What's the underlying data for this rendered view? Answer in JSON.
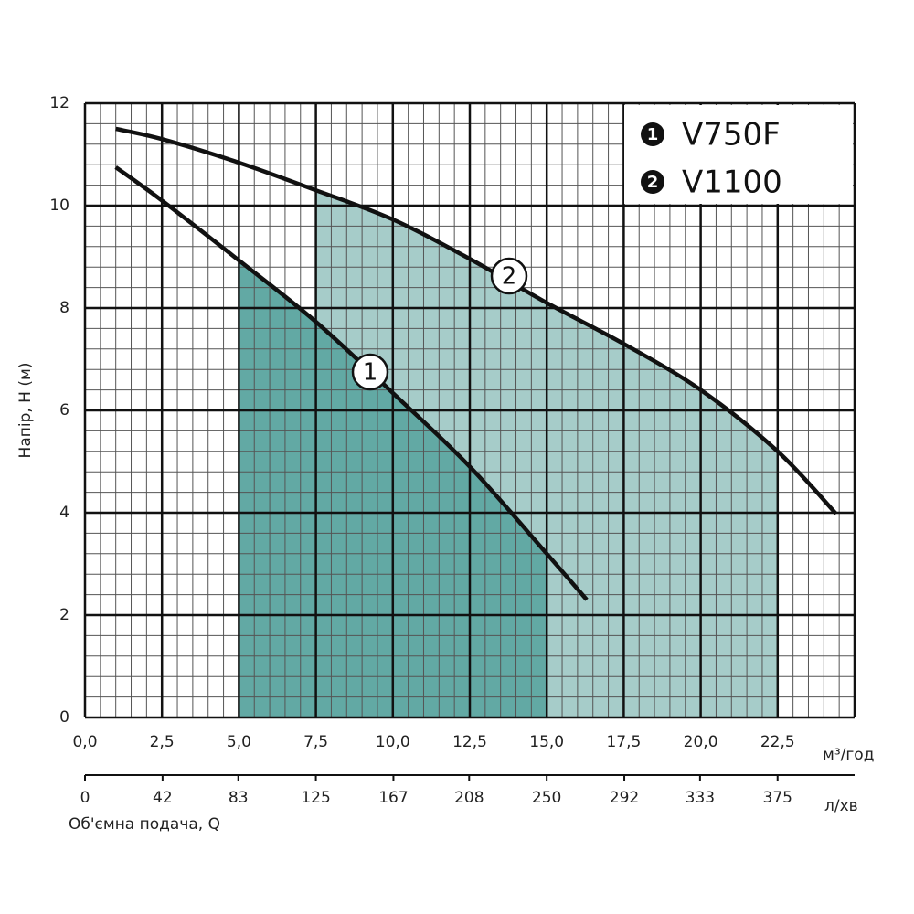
{
  "chart_data": {
    "type": "line",
    "ylabel": "Напір, Н (м)",
    "xlabel_unit": "м³/год",
    "x2label": "Об'ємна подача, Q",
    "x2label_unit": "л/хв",
    "xlim": [
      0,
      25
    ],
    "ylim": [
      0,
      12
    ],
    "x2lim": [
      0,
      416.7
    ],
    "xticks": [
      {
        "value": 0,
        "label": "0,0"
      },
      {
        "value": 2.5,
        "label": "2,5"
      },
      {
        "value": 5,
        "label": "5,0"
      },
      {
        "value": 7.5,
        "label": "7,5"
      },
      {
        "value": 10,
        "label": "10,0"
      },
      {
        "value": 12.5,
        "label": "12,5"
      },
      {
        "value": 15,
        "label": "15,0"
      },
      {
        "value": 17.5,
        "label": "17,5"
      },
      {
        "value": 20,
        "label": "20,0"
      },
      {
        "value": 22.5,
        "label": "22,5"
      }
    ],
    "x2ticks": [
      0,
      42,
      83,
      125,
      167,
      208,
      250,
      292,
      333,
      375
    ],
    "yticks": [
      0,
      2,
      4,
      6,
      8,
      10,
      12
    ],
    "grid": true,
    "minor_grid_divisions": 5,
    "series": [
      {
        "name": "V750F",
        "label": "1",
        "color": "#111111",
        "x": [
          1,
          2.5,
          5,
          7.5,
          10,
          12.5,
          15,
          16.3
        ],
        "values": [
          10.75,
          10.1,
          8.93,
          7.73,
          6.34,
          4.9,
          3.2,
          2.3
        ],
        "range": [
          5,
          15
        ],
        "range_color": "#62a9a4"
      },
      {
        "name": "V1100",
        "label": "2",
        "color": "#111111",
        "x": [
          1,
          2.5,
          5,
          7.5,
          10,
          12.5,
          15,
          17.5,
          20,
          22.5,
          24.4
        ],
        "values": [
          11.5,
          11.3,
          10.84,
          10.3,
          9.73,
          8.96,
          8.1,
          7.3,
          6.4,
          5.2,
          3.98
        ],
        "range": [
          7.5,
          22.5
        ],
        "range_color": "#a6ccc9"
      }
    ]
  }
}
